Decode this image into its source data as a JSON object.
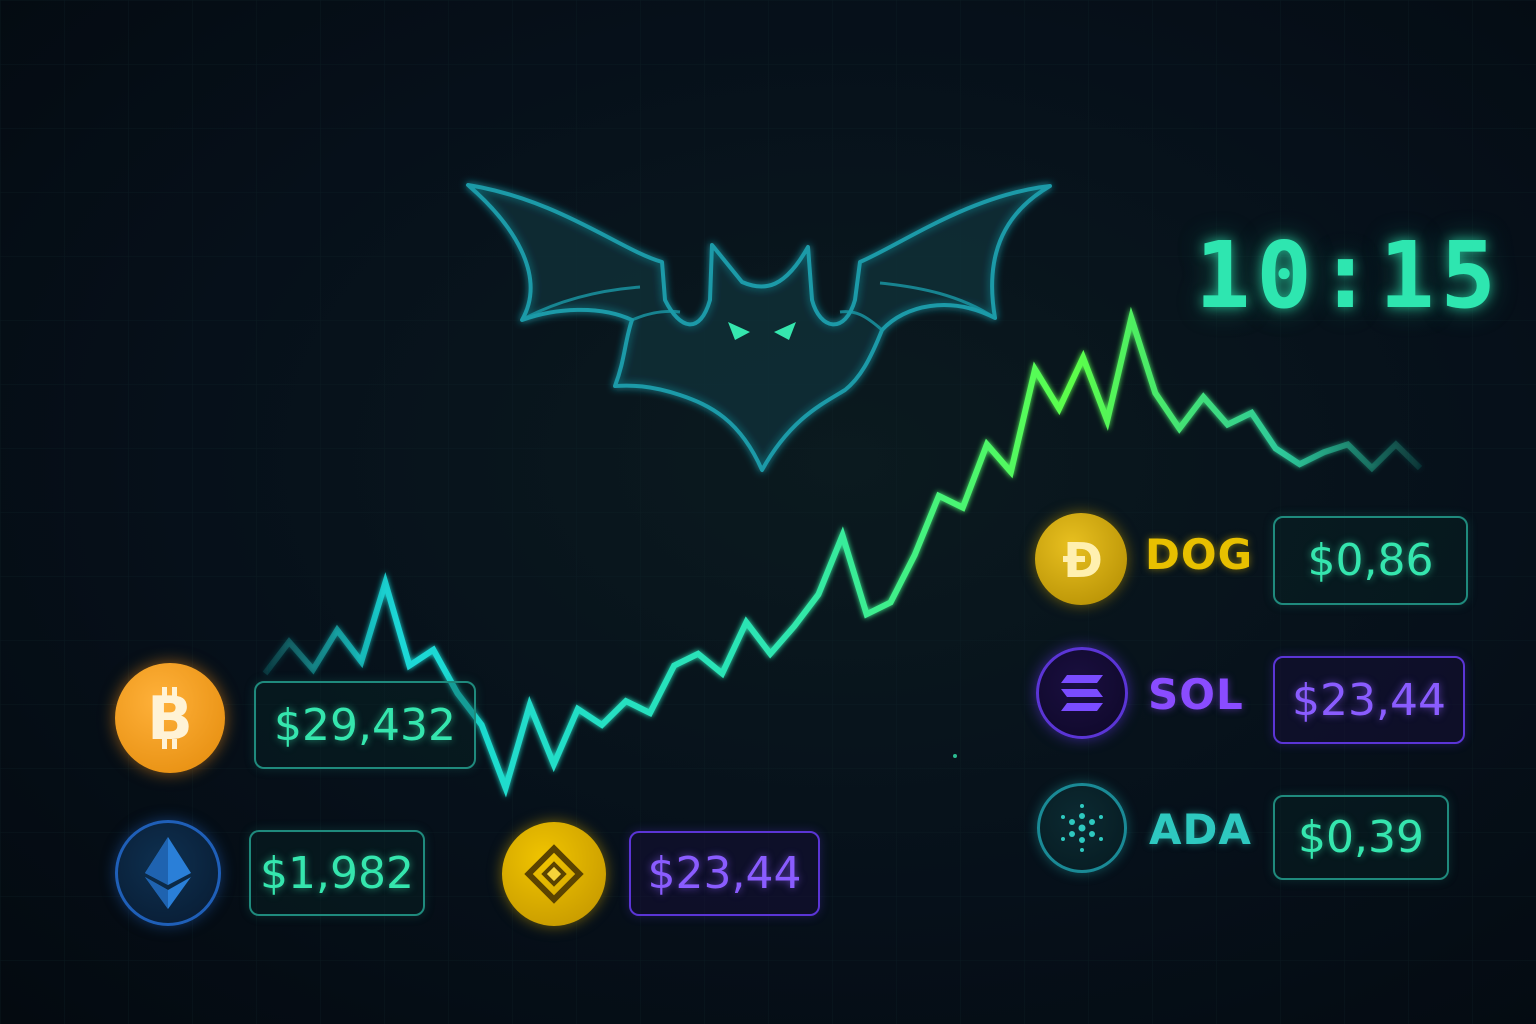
{
  "clock": {
    "time": "10:15"
  },
  "colors": {
    "teal": "#35e6ae",
    "green": "#5cff4a",
    "purple": "#8a5cff",
    "btc_orange": "#f7931a",
    "eth_blue": "#1f5fb8",
    "bnb_gold": "#e0b400",
    "doge_gold": "#d4a900",
    "sol_purple": "#6b3cff",
    "ada_teal": "#1fa3a8"
  },
  "coins": [
    {
      "id": "btc",
      "icon": "bitcoin-icon",
      "ticker": "",
      "price": "$29,432"
    },
    {
      "id": "eth",
      "icon": "ethereum-icon",
      "ticker": "",
      "price": "$1,982"
    },
    {
      "id": "bnb",
      "icon": "bnb-icon",
      "ticker": "",
      "price": "$23,44"
    },
    {
      "id": "doge",
      "icon": "dogecoin-icon",
      "ticker": "DOG",
      "price": "$0,86"
    },
    {
      "id": "sol",
      "icon": "solana-icon",
      "ticker": "SOL",
      "price": "$23,44"
    },
    {
      "id": "ada",
      "icon": "cardano-icon",
      "ticker": "ADA",
      "price": "$0,39"
    }
  ],
  "logo": {
    "icon": "bat-logo-icon"
  },
  "chart_data": {
    "type": "line",
    "series": [
      {
        "values": [
          10,
          18,
          11,
          21,
          13,
          33,
          12,
          16,
          5,
          -3,
          -19,
          2,
          -13,
          1,
          -3,
          3,
          0,
          12,
          15,
          10,
          23,
          15,
          22,
          30,
          45,
          25,
          28,
          40,
          55,
          52,
          68,
          61,
          87,
          77,
          90,
          74,
          100,
          81,
          72,
          80,
          73,
          76,
          67,
          63,
          66,
          68,
          62,
          68,
          62
        ]
      }
    ]
  }
}
